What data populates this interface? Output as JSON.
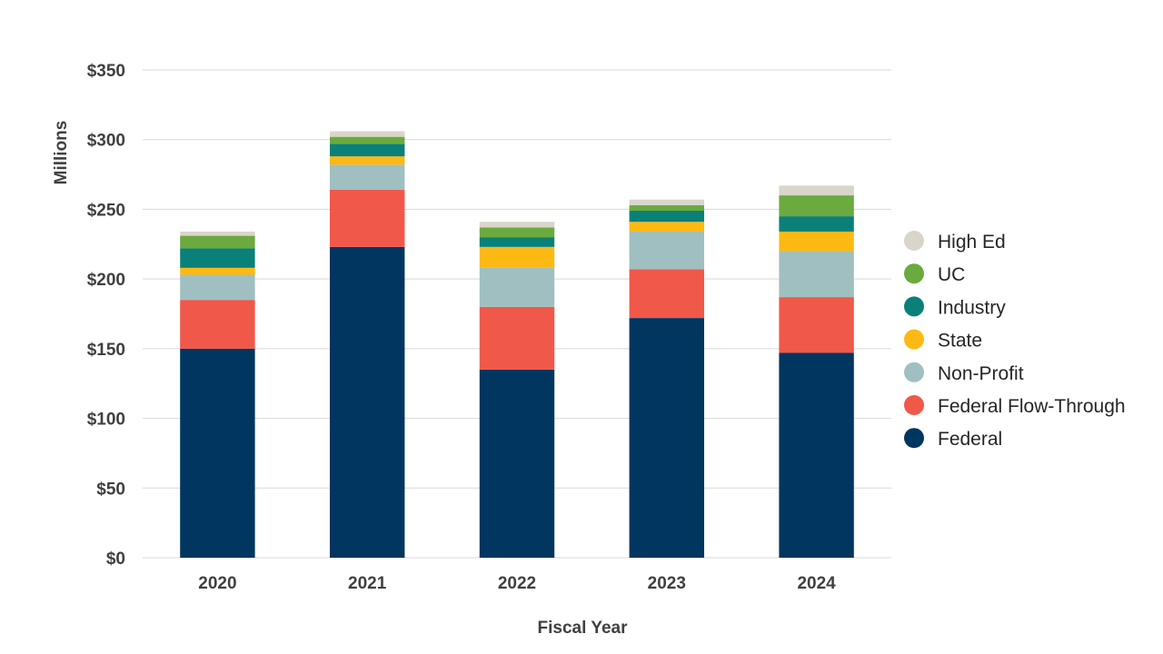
{
  "chart_data": {
    "type": "bar",
    "stacked": true,
    "title": "",
    "xlabel": "Fiscal Year",
    "ylabel": "Millions",
    "ylim": [
      0,
      350
    ],
    "yticks": [
      0,
      50,
      100,
      150,
      200,
      250,
      300,
      350
    ],
    "ytick_labels": [
      "$0",
      "$50",
      "$100",
      "$150",
      "$200",
      "$250",
      "$300",
      "$350"
    ],
    "grid": true,
    "legend_position": "right",
    "categories": [
      "2020",
      "2021",
      "2022",
      "2023",
      "2024"
    ],
    "series": [
      {
        "name": "Federal",
        "color": "#00365f",
        "values": [
          150,
          223,
          135,
          172,
          147
        ]
      },
      {
        "name": "Federal Flow-Through",
        "color": "#f0584a",
        "values": [
          35,
          41,
          45,
          35,
          40
        ]
      },
      {
        "name": "Non-Profit",
        "color": "#a0bfc0",
        "values": [
          18,
          18,
          28,
          27,
          33
        ]
      },
      {
        "name": "State",
        "color": "#fdb913",
        "values": [
          5,
          6,
          15,
          7,
          14
        ]
      },
      {
        "name": "Industry",
        "color": "#0a8078",
        "values": [
          14,
          9,
          7,
          8,
          11
        ]
      },
      {
        "name": "UC",
        "color": "#6aaa3e",
        "values": [
          9,
          5,
          7,
          4,
          15
        ]
      },
      {
        "name": "High Ed",
        "color": "#dad5cb",
        "values": [
          3,
          4,
          4,
          4,
          7
        ]
      }
    ]
  }
}
